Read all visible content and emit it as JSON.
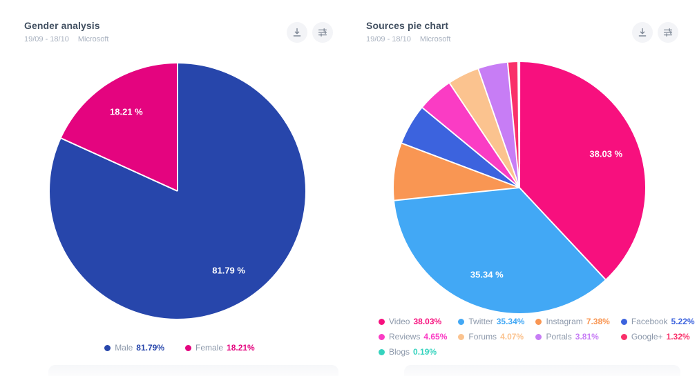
{
  "cards": [
    {
      "title": "Gender analysis",
      "date_range": "19/09 - 18/10",
      "filter": "Microsoft"
    },
    {
      "title": "Sources pie chart",
      "date_range": "19/09 - 18/10",
      "filter": "Microsoft"
    }
  ],
  "icons": {
    "download": "download-icon",
    "settings": "filter-sliders-icon"
  },
  "chart_data": [
    {
      "type": "pie",
      "title": "Gender analysis",
      "start_angle_deg": 0,
      "direction": "clockwise",
      "legend_position": "bottom-center",
      "series": [
        {
          "name": "Male",
          "value": 81.79,
          "value_text": "81.79%",
          "color": "#2746ab",
          "slice_label": "81.79 %"
        },
        {
          "name": "Female",
          "value": 18.21,
          "value_text": "18.21%",
          "color": "#e4047f",
          "slice_label": "18.21 %"
        }
      ]
    },
    {
      "type": "pie",
      "title": "Sources pie chart",
      "start_angle_deg": 0,
      "direction": "clockwise",
      "legend_position": "bottom-left",
      "series": [
        {
          "name": "Video",
          "value": 38.03,
          "value_text": "38.03%",
          "color": "#f7107e",
          "slice_label": "38.03 %"
        },
        {
          "name": "Twitter",
          "value": 35.34,
          "value_text": "35.34%",
          "color": "#42a8f5",
          "slice_label": "35.34 %"
        },
        {
          "name": "Instagram",
          "value": 7.38,
          "value_text": "7.38%",
          "color": "#f99653",
          "slice_label": null
        },
        {
          "name": "Facebook",
          "value": 5.22,
          "value_text": "5.22%",
          "color": "#3c63de",
          "slice_label": null
        },
        {
          "name": "Reviews",
          "value": 4.65,
          "value_text": "4.65%",
          "color": "#fa3cc4",
          "slice_label": null
        },
        {
          "name": "Forums",
          "value": 4.07,
          "value_text": "4.07%",
          "color": "#fbc38f",
          "slice_label": null
        },
        {
          "name": "Portals",
          "value": 3.81,
          "value_text": "3.81%",
          "color": "#c77df5",
          "slice_label": null
        },
        {
          "name": "Google+",
          "value": 1.32,
          "value_text": "1.32%",
          "color": "#f93069",
          "slice_label": null
        },
        {
          "name": "Blogs",
          "value": 0.19,
          "value_text": "0.19%",
          "color": "#35d3be",
          "slice_label": null
        }
      ]
    }
  ]
}
